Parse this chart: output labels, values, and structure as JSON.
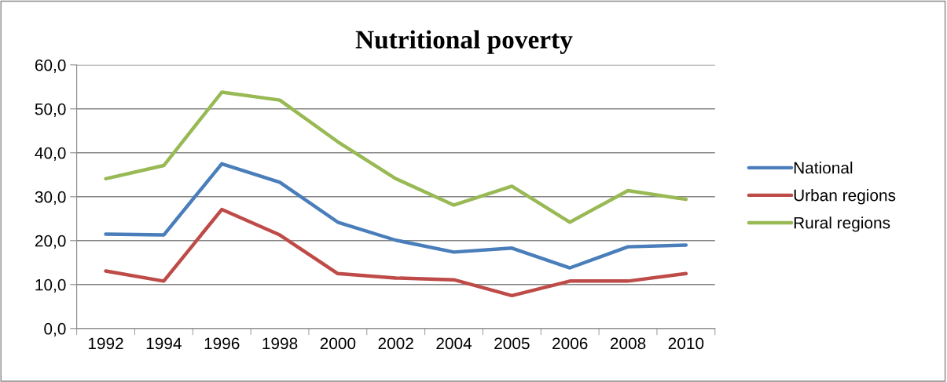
{
  "chart_data": {
    "type": "line",
    "title": "Nutritional poverty",
    "categories": [
      "1992",
      "1994",
      "1996",
      "1998",
      "2000",
      "2002",
      "2004",
      "2005",
      "2006",
      "2008",
      "2010"
    ],
    "series": [
      {
        "name": "National",
        "color": "#4a7ebb",
        "values": [
          21.5,
          21.3,
          37.5,
          33.3,
          24.2,
          20.1,
          17.4,
          18.3,
          13.8,
          18.6,
          19.0
        ]
      },
      {
        "name": "Urban regions",
        "color": "#be4b48",
        "values": [
          13.1,
          10.8,
          27.1,
          21.3,
          12.5,
          11.5,
          11.1,
          7.5,
          10.8,
          10.8,
          12.5
        ]
      },
      {
        "name": "Rural regions",
        "color": "#98b954",
        "values": [
          34.1,
          37.1,
          53.8,
          52.0,
          42.5,
          34.1,
          28.1,
          32.4,
          24.2,
          31.4,
          29.4
        ]
      }
    ],
    "ylim": [
      0,
      60
    ],
    "yticks": [
      {
        "value": 0,
        "label": "0,0"
      },
      {
        "value": 10,
        "label": "10,0"
      },
      {
        "value": 20,
        "label": "20,0"
      },
      {
        "value": 30,
        "label": "30,0"
      },
      {
        "value": 40,
        "label": "40,0"
      },
      {
        "value": 50,
        "label": "50,0"
      },
      {
        "value": 60,
        "label": "60,0"
      }
    ],
    "grid": "y",
    "legend": "right",
    "marker": "none",
    "line_style": "solid"
  }
}
